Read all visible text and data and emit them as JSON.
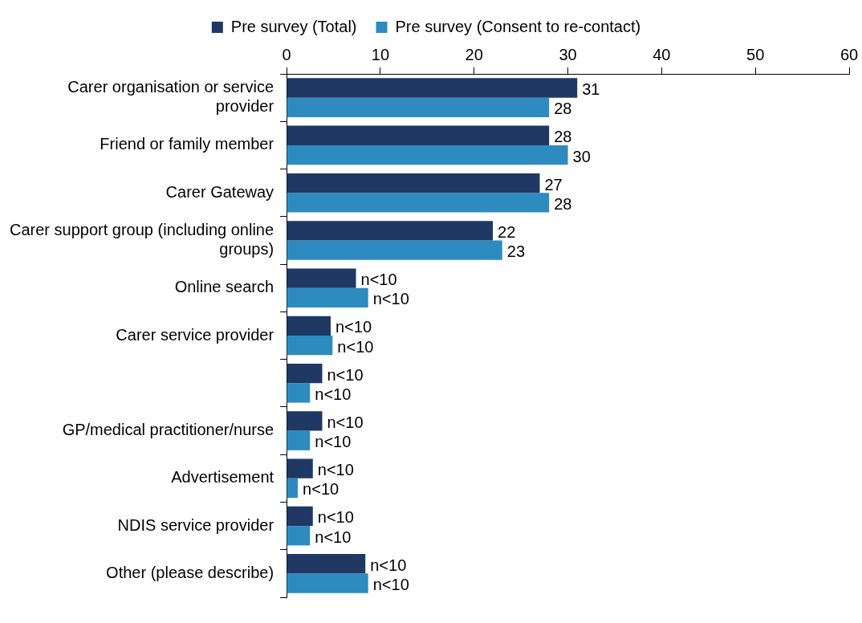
{
  "chart_data": {
    "type": "bar",
    "orientation": "horizontal",
    "legend": "top",
    "categories": [
      "Carer organisation or service provider",
      "Friend or family member",
      "Carer Gateway",
      "Carer support group (including online groups)",
      "Online search",
      "Carer service provider",
      null,
      "GP/medical practitioner/nurse",
      "Advertisement",
      "NDIS service provider",
      "Other (please describe)"
    ],
    "xlim": [
      0,
      60
    ],
    "xticks": [
      0,
      10,
      20,
      30,
      40,
      50,
      60
    ],
    "series": [
      {
        "name": "Pre survey (Total)",
        "color": "#1f3864",
        "values": [
          31,
          28,
          27,
          22,
          7.4,
          4.7,
          3.8,
          3.8,
          2.8,
          2.8,
          8.4
        ],
        "value_labels": [
          "31",
          "28",
          "27",
          "22",
          "n<10",
          "n<10",
          "n<10",
          "n<10",
          "n<10",
          "n<10",
          "n<10"
        ]
      },
      {
        "name": "Pre survey (Consent to re-contact)",
        "color": "#2e8bc0",
        "values": [
          28,
          30,
          28,
          23,
          8.7,
          4.9,
          2.5,
          2.5,
          1.2,
          2.5,
          8.7
        ],
        "value_labels": [
          "28",
          "30",
          "28",
          "23",
          "n<10",
          "n<10",
          "n<10",
          "n<10",
          "n<10",
          "n<10",
          "n<10"
        ]
      }
    ]
  }
}
